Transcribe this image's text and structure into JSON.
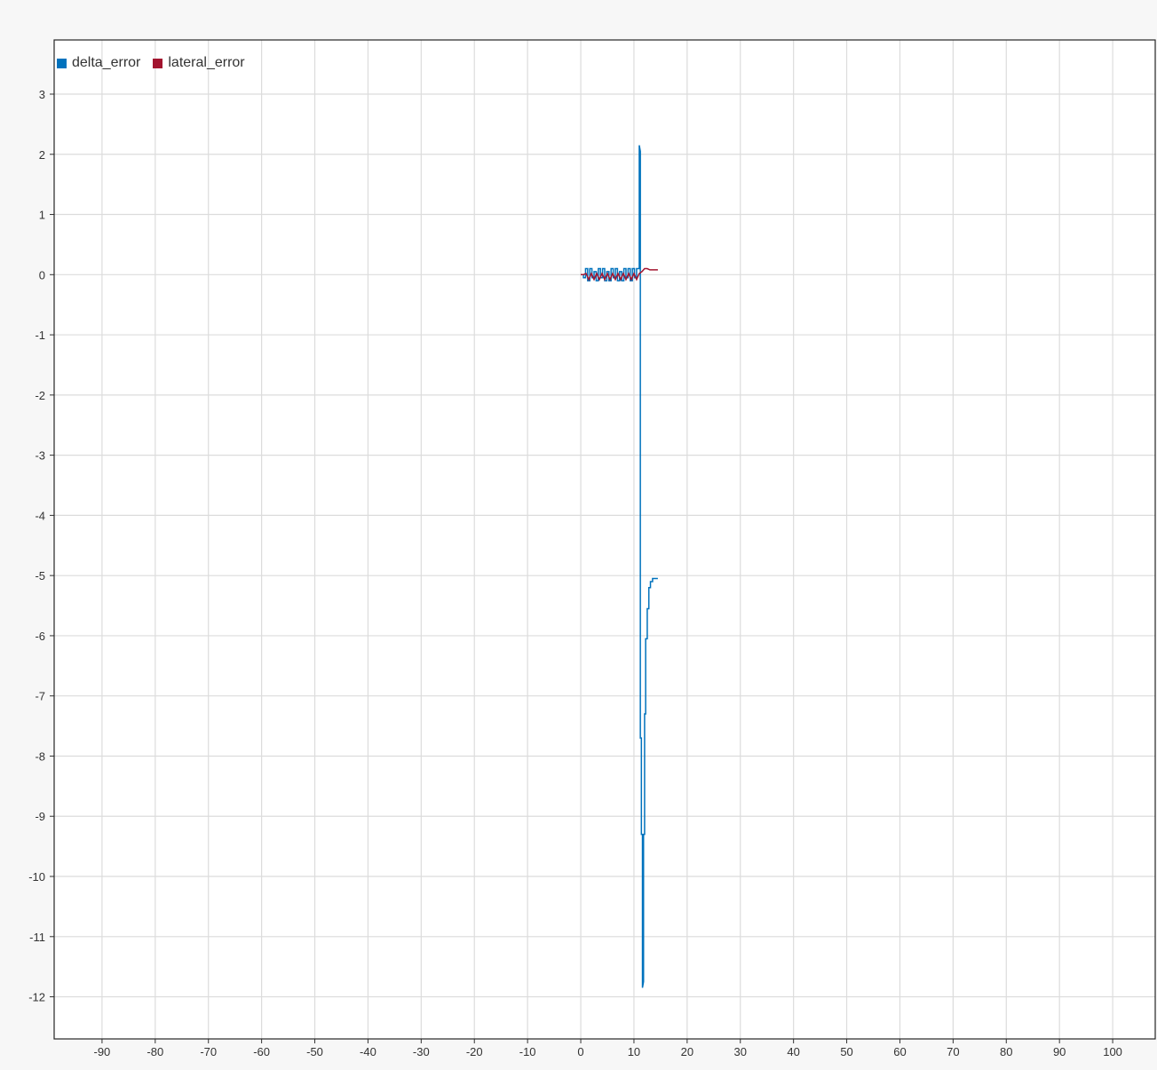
{
  "chart_data": {
    "type": "line",
    "title": "",
    "xlabel": "",
    "ylabel": "",
    "xlim": [
      -99,
      108
    ],
    "ylim": [
      -12.7,
      3.9
    ],
    "x_ticks": [
      -90,
      -80,
      -70,
      -60,
      -50,
      -40,
      -30,
      -20,
      -10,
      0,
      10,
      20,
      30,
      40,
      50,
      60,
      70,
      80,
      90,
      100
    ],
    "y_ticks": [
      3,
      2,
      1,
      0,
      -1,
      -2,
      -3,
      -4,
      -5,
      -6,
      -7,
      -8,
      -9,
      -10,
      -11,
      -12
    ],
    "grid": true,
    "legend_position": "top-left",
    "series": [
      {
        "name": "delta_error",
        "color": "#0072bd",
        "x": [
          0,
          0.5,
          0.5,
          0.9,
          0.9,
          1.3,
          1.3,
          1.7,
          1.7,
          2.1,
          2.1,
          2.5,
          2.5,
          2.9,
          2.9,
          3.3,
          3.3,
          3.7,
          3.7,
          4.1,
          4.1,
          4.5,
          4.5,
          4.9,
          4.9,
          5.3,
          5.3,
          5.7,
          5.7,
          6.1,
          6.1,
          6.5,
          6.5,
          6.9,
          6.9,
          7.3,
          7.3,
          7.7,
          7.7,
          8.1,
          8.1,
          8.5,
          8.5,
          8.9,
          8.9,
          9.3,
          9.3,
          9.7,
          9.7,
          10.1,
          10.1,
          10.5,
          10.5,
          11.0,
          11.0,
          11.2,
          11.2,
          11.4,
          11.4,
          11.6,
          11.6,
          11.8,
          11.8,
          12.0,
          12.0,
          12.2,
          12.2,
          12.5,
          12.5,
          12.8,
          12.8,
          13.1,
          13.1,
          13.5,
          13.5,
          14.0,
          14.5
        ],
        "y": [
          0,
          0,
          -0.05,
          -0.05,
          0.1,
          0.1,
          -0.1,
          -0.1,
          0.1,
          0.1,
          -0.05,
          -0.05,
          0.05,
          0.05,
          -0.1,
          -0.1,
          0.1,
          0.1,
          -0.05,
          -0.05,
          0.1,
          0.1,
          -0.1,
          -0.1,
          0.05,
          0.05,
          -0.1,
          -0.1,
          0.1,
          0.1,
          -0.05,
          -0.05,
          0.1,
          0.1,
          -0.1,
          -0.1,
          0.05,
          0.05,
          -0.1,
          -0.1,
          0.1,
          0.1,
          -0.05,
          -0.05,
          0.1,
          0.1,
          -0.1,
          -0.1,
          0.1,
          0.1,
          -0.05,
          -0.05,
          0.1,
          0.1,
          2.15,
          2.05,
          -7.7,
          -7.7,
          -9.3,
          -9.3,
          -11.85,
          -11.75,
          -9.3,
          -9.3,
          -7.3,
          -7.3,
          -6.05,
          -6.05,
          -5.55,
          -5.55,
          -5.2,
          -5.2,
          -5.1,
          -5.1,
          -5.05,
          -5.05,
          -5.05
        ]
      },
      {
        "name": "lateral_error",
        "color": "#a2142f",
        "x": [
          0,
          0.5,
          1.0,
          1.5,
          2.0,
          2.5,
          3.0,
          3.5,
          4.0,
          4.5,
          5.0,
          5.5,
          6.0,
          6.5,
          7.0,
          7.5,
          8.0,
          8.5,
          9.0,
          9.5,
          10.0,
          10.5,
          11.0,
          11.5,
          12.0,
          12.5,
          13.0,
          14.5
        ],
        "y": [
          0,
          0,
          0.02,
          -0.08,
          0.02,
          -0.08,
          0.02,
          -0.08,
          0.02,
          -0.08,
          0.02,
          -0.08,
          0.02,
          -0.08,
          0.02,
          -0.08,
          0.02,
          -0.08,
          0.02,
          -0.08,
          0.02,
          -0.08,
          0.02,
          0.05,
          0.1,
          0.1,
          0.08,
          0.08
        ]
      }
    ]
  }
}
